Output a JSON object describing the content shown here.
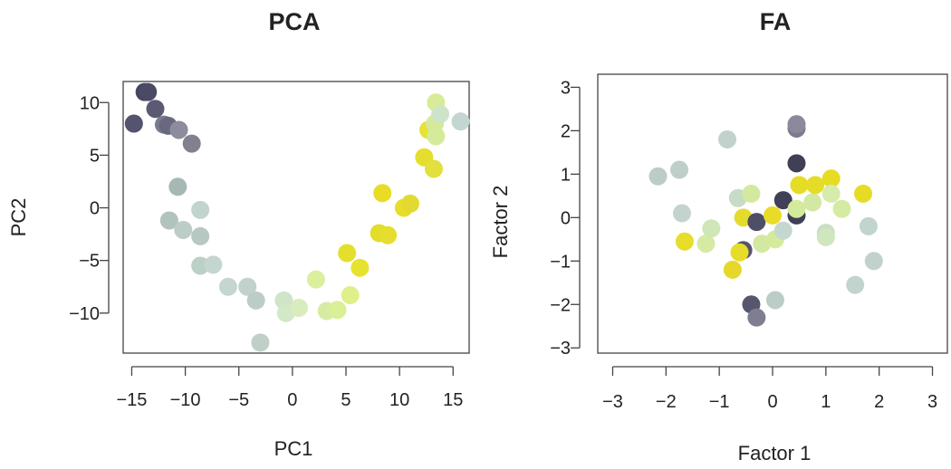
{
  "chart_data": [
    {
      "type": "scatter",
      "title": "PCA",
      "xlabel": "PC1",
      "ylabel": "PC2",
      "xlim": [
        -15.8,
        16.5
      ],
      "ylim": [
        -13.8,
        12.0
      ],
      "xticks": [
        -15,
        -10,
        -5,
        0,
        5,
        10,
        15
      ],
      "xtick_labels": [
        "−15",
        "−10",
        "−5",
        "0",
        "5",
        "10",
        "15"
      ],
      "yticks": [
        -10,
        -5,
        0,
        5,
        10
      ],
      "ytick_labels": [
        "−10",
        "−5",
        "0",
        "5",
        "10"
      ],
      "grid": false,
      "points": [
        {
          "x": -14.8,
          "y": 8.0,
          "color": "#54546e"
        },
        {
          "x": -13.8,
          "y": 11.0,
          "color": "#45455e"
        },
        {
          "x": -13.5,
          "y": 11.0,
          "color": "#4a4a65"
        },
        {
          "x": -12.8,
          "y": 9.4,
          "color": "#5a5a74"
        },
        {
          "x": -12.0,
          "y": 7.9,
          "color": "#7b7b8e"
        },
        {
          "x": -11.6,
          "y": 7.8,
          "color": "#686880"
        },
        {
          "x": -10.6,
          "y": 7.4,
          "color": "#8c8c9c"
        },
        {
          "x": -9.4,
          "y": 6.1,
          "color": "#80808f"
        },
        {
          "x": -10.7,
          "y": 2.0,
          "color": "#a6b8b4"
        },
        {
          "x": -8.6,
          "y": -0.2,
          "color": "#c1d4cd"
        },
        {
          "x": -11.5,
          "y": -1.2,
          "color": "#b1c3bc"
        },
        {
          "x": -10.2,
          "y": -2.1,
          "color": "#bccdc7"
        },
        {
          "x": -8.6,
          "y": -2.7,
          "color": "#b6c8c1"
        },
        {
          "x": -8.6,
          "y": -5.5,
          "color": "#bcd0c8"
        },
        {
          "x": -7.4,
          "y": -5.4,
          "color": "#c4d6cf"
        },
        {
          "x": -6.0,
          "y": -7.5,
          "color": "#c4d6cf"
        },
        {
          "x": -4.2,
          "y": -7.5,
          "color": "#c0d2cb"
        },
        {
          "x": -3.4,
          "y": -8.8,
          "color": "#bccdc7"
        },
        {
          "x": -3.0,
          "y": -12.8,
          "color": "#bfd0c6"
        },
        {
          "x": -0.8,
          "y": -8.8,
          "color": "#cfe4c9"
        },
        {
          "x": -0.6,
          "y": -10.0,
          "color": "#d2e8c6"
        },
        {
          "x": 0.6,
          "y": -9.5,
          "color": "#d8ecbd"
        },
        {
          "x": 2.2,
          "y": -6.8,
          "color": "#dbef9f"
        },
        {
          "x": 3.2,
          "y": -9.8,
          "color": "#d7eca3"
        },
        {
          "x": 4.2,
          "y": -9.7,
          "color": "#d9ef98"
        },
        {
          "x": 5.4,
          "y": -8.3,
          "color": "#dff08b"
        },
        {
          "x": 5.1,
          "y": -4.3,
          "color": "#e4df2c"
        },
        {
          "x": 6.3,
          "y": -5.7,
          "color": "#e7e230"
        },
        {
          "x": 8.4,
          "y": 1.4,
          "color": "#e8dc26"
        },
        {
          "x": 8.1,
          "y": -2.4,
          "color": "#e3dc2a"
        },
        {
          "x": 8.9,
          "y": -2.6,
          "color": "#e5de2c"
        },
        {
          "x": 10.4,
          "y": 0.0,
          "color": "#e8dd28"
        },
        {
          "x": 11.0,
          "y": 0.4,
          "color": "#e2da30"
        },
        {
          "x": 12.3,
          "y": 4.8,
          "color": "#e6de2e"
        },
        {
          "x": 13.2,
          "y": 3.7,
          "color": "#e2e03c"
        },
        {
          "x": 12.7,
          "y": 7.4,
          "color": "#e7e234"
        },
        {
          "x": 13.4,
          "y": 10.0,
          "color": "#d8ec98"
        },
        {
          "x": 13.3,
          "y": 8.0,
          "color": "#d4ea9a"
        },
        {
          "x": 13.8,
          "y": 8.9,
          "color": "#cde4c9"
        },
        {
          "x": 13.4,
          "y": 6.8,
          "color": "#d5eb9c"
        },
        {
          "x": 15.7,
          "y": 8.2,
          "color": "#c3d6cf"
        }
      ]
    },
    {
      "type": "scatter",
      "title": "FA",
      "xlabel": "Factor 1",
      "ylabel": "Factor 2",
      "xlim": [
        -3.28,
        3.28
      ],
      "ylim": [
        -3.12,
        3.3
      ],
      "xticks": [
        -3,
        -2,
        -1,
        0,
        1,
        2,
        3
      ],
      "xtick_labels": [
        "−3",
        "−2",
        "−1",
        "0",
        "1",
        "2",
        "3"
      ],
      "yticks": [
        -3,
        -2,
        -1,
        0,
        1,
        2,
        3
      ],
      "ytick_labels": [
        "−3",
        "−2",
        "−1",
        "0",
        "1",
        "2",
        "3"
      ],
      "grid": false,
      "points": [
        {
          "x": -2.15,
          "y": 0.95,
          "color": "#bccdc7"
        },
        {
          "x": -1.75,
          "y": 1.1,
          "color": "#bdcfc8"
        },
        {
          "x": -0.85,
          "y": 1.8,
          "color": "#c0d2cb"
        },
        {
          "x": -1.7,
          "y": 0.1,
          "color": "#c2d4cd"
        },
        {
          "x": -1.65,
          "y": -0.55,
          "color": "#e7dd2a"
        },
        {
          "x": -1.25,
          "y": -0.6,
          "color": "#d5eba4"
        },
        {
          "x": -1.15,
          "y": -0.25,
          "color": "#cfe6b8"
        },
        {
          "x": -0.65,
          "y": 0.45,
          "color": "#c6dcc7"
        },
        {
          "x": -0.4,
          "y": 0.55,
          "color": "#d3e9a0"
        },
        {
          "x": -0.55,
          "y": 0.0,
          "color": "#e4dc2c"
        },
        {
          "x": -0.3,
          "y": -0.1,
          "color": "#4e4e68"
        },
        {
          "x": -0.55,
          "y": -0.75,
          "color": "#55556e"
        },
        {
          "x": -0.62,
          "y": -0.8,
          "color": "#e6dc2a"
        },
        {
          "x": -0.75,
          "y": -1.2,
          "color": "#e6d82a"
        },
        {
          "x": -0.2,
          "y": -0.6,
          "color": "#d3e8a0"
        },
        {
          "x": 0.05,
          "y": -0.5,
          "color": "#d5eb9c"
        },
        {
          "x": 0.2,
          "y": 0.4,
          "color": "#404058"
        },
        {
          "x": 0.0,
          "y": 0.05,
          "color": "#e8dc28"
        },
        {
          "x": 0.2,
          "y": -0.3,
          "color": "#c5d8cf"
        },
        {
          "x": 0.45,
          "y": 0.05,
          "color": "#3f3f56"
        },
        {
          "x": 0.45,
          "y": 1.25,
          "color": "#3f3f56"
        },
        {
          "x": 0.45,
          "y": 2.05,
          "color": "#7c7c8e"
        },
        {
          "x": 0.45,
          "y": 2.15,
          "color": "#8a8a9c"
        },
        {
          "x": 0.45,
          "y": 0.2,
          "color": "#d5eb9c"
        },
        {
          "x": 0.5,
          "y": 0.75,
          "color": "#e6dc26"
        },
        {
          "x": 0.75,
          "y": 0.35,
          "color": "#d3e8a3"
        },
        {
          "x": 0.8,
          "y": 0.75,
          "color": "#e6dc28"
        },
        {
          "x": 1.1,
          "y": 0.9,
          "color": "#e6dc26"
        },
        {
          "x": 1.1,
          "y": 0.55,
          "color": "#d6ecaa"
        },
        {
          "x": 1.3,
          "y": 0.2,
          "color": "#d5eba4"
        },
        {
          "x": 1.0,
          "y": -0.35,
          "color": "#c9e0c2"
        },
        {
          "x": 1.0,
          "y": -0.45,
          "color": "#cfe6be"
        },
        {
          "x": 1.7,
          "y": 0.55,
          "color": "#e6dc26"
        },
        {
          "x": 1.8,
          "y": -0.2,
          "color": "#c1d4cd"
        },
        {
          "x": 1.9,
          "y": -1.0,
          "color": "#c0d2cb"
        },
        {
          "x": 1.55,
          "y": -1.55,
          "color": "#c2d4cd"
        },
        {
          "x": 0.05,
          "y": -1.9,
          "color": "#bccdc7"
        },
        {
          "x": -0.4,
          "y": -2.0,
          "color": "#56566e"
        },
        {
          "x": -0.3,
          "y": -2.3,
          "color": "#7e7e90"
        }
      ]
    }
  ]
}
